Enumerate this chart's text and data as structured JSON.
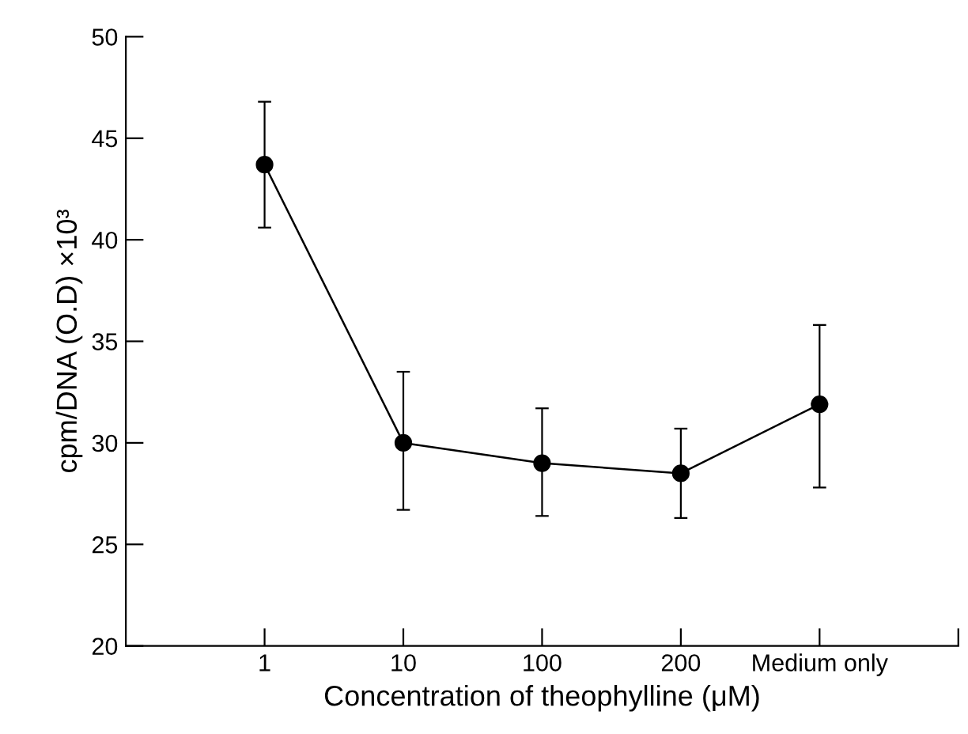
{
  "chart_data": {
    "type": "line",
    "xlabel": "Concentration of theophylline (μM)",
    "ylabel": "cpm/DNA (O.D) ×10³",
    "categories": [
      "1",
      "10",
      "100",
      "200",
      "Medium only",
      null
    ],
    "series": [
      {
        "color": "#000000",
        "values": [
          43.7,
          30.0,
          29.0,
          28.5,
          31.9,
          null
        ],
        "errors": [
          [
            40.6,
            46.8
          ],
          [
            26.7,
            33.5
          ],
          [
            26.4,
            31.7
          ],
          [
            26.3,
            30.7
          ],
          [
            27.8,
            35.8
          ],
          null
        ]
      }
    ],
    "ylim": [
      20,
      50
    ],
    "yticks": [
      20,
      25,
      30,
      35,
      40,
      45,
      50
    ],
    "marker": "circle",
    "line_style": "solid",
    "grid": false,
    "legend": false
  }
}
